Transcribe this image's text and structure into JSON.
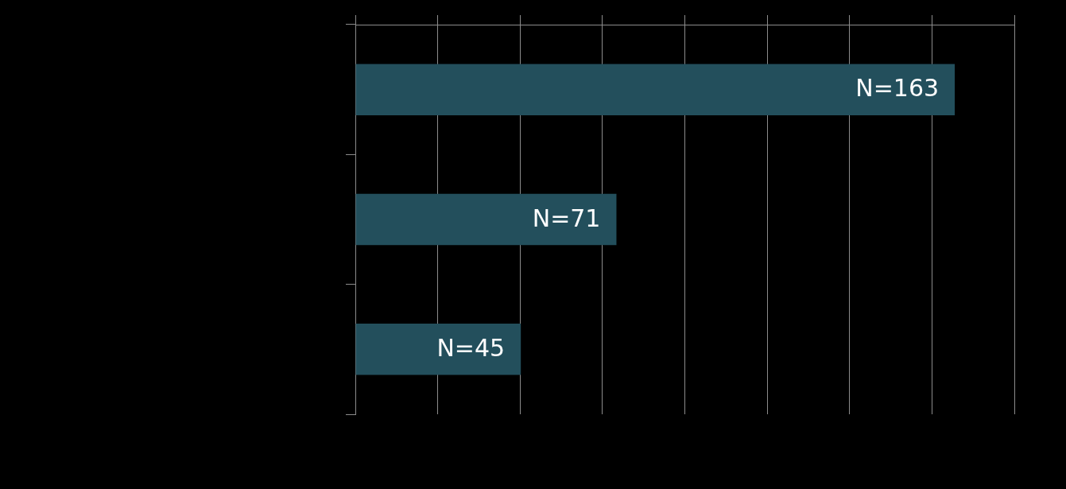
{
  "chart_data": {
    "type": "bar",
    "orientation": "horizontal",
    "categories": [
      null,
      null,
      null
    ],
    "values": [
      163,
      71,
      45
    ],
    "value_labels": [
      "N=163",
      "N=71",
      "N=45"
    ],
    "color": "#234f5c",
    "xlim": [
      0,
      179.2
    ],
    "xticks": [
      {
        "value": 0,
        "label": null
      },
      {
        "value": 22.4,
        "label": null
      },
      {
        "value": 44.8,
        "label": null
      },
      {
        "value": 67.2,
        "label": null
      },
      {
        "value": 89.6,
        "label": null
      },
      {
        "value": 112,
        "label": null
      },
      {
        "value": 134.4,
        "label": null
      },
      {
        "value": 156.8,
        "label": null
      },
      {
        "value": 179.2,
        "label": null
      }
    ],
    "grid": "x"
  }
}
